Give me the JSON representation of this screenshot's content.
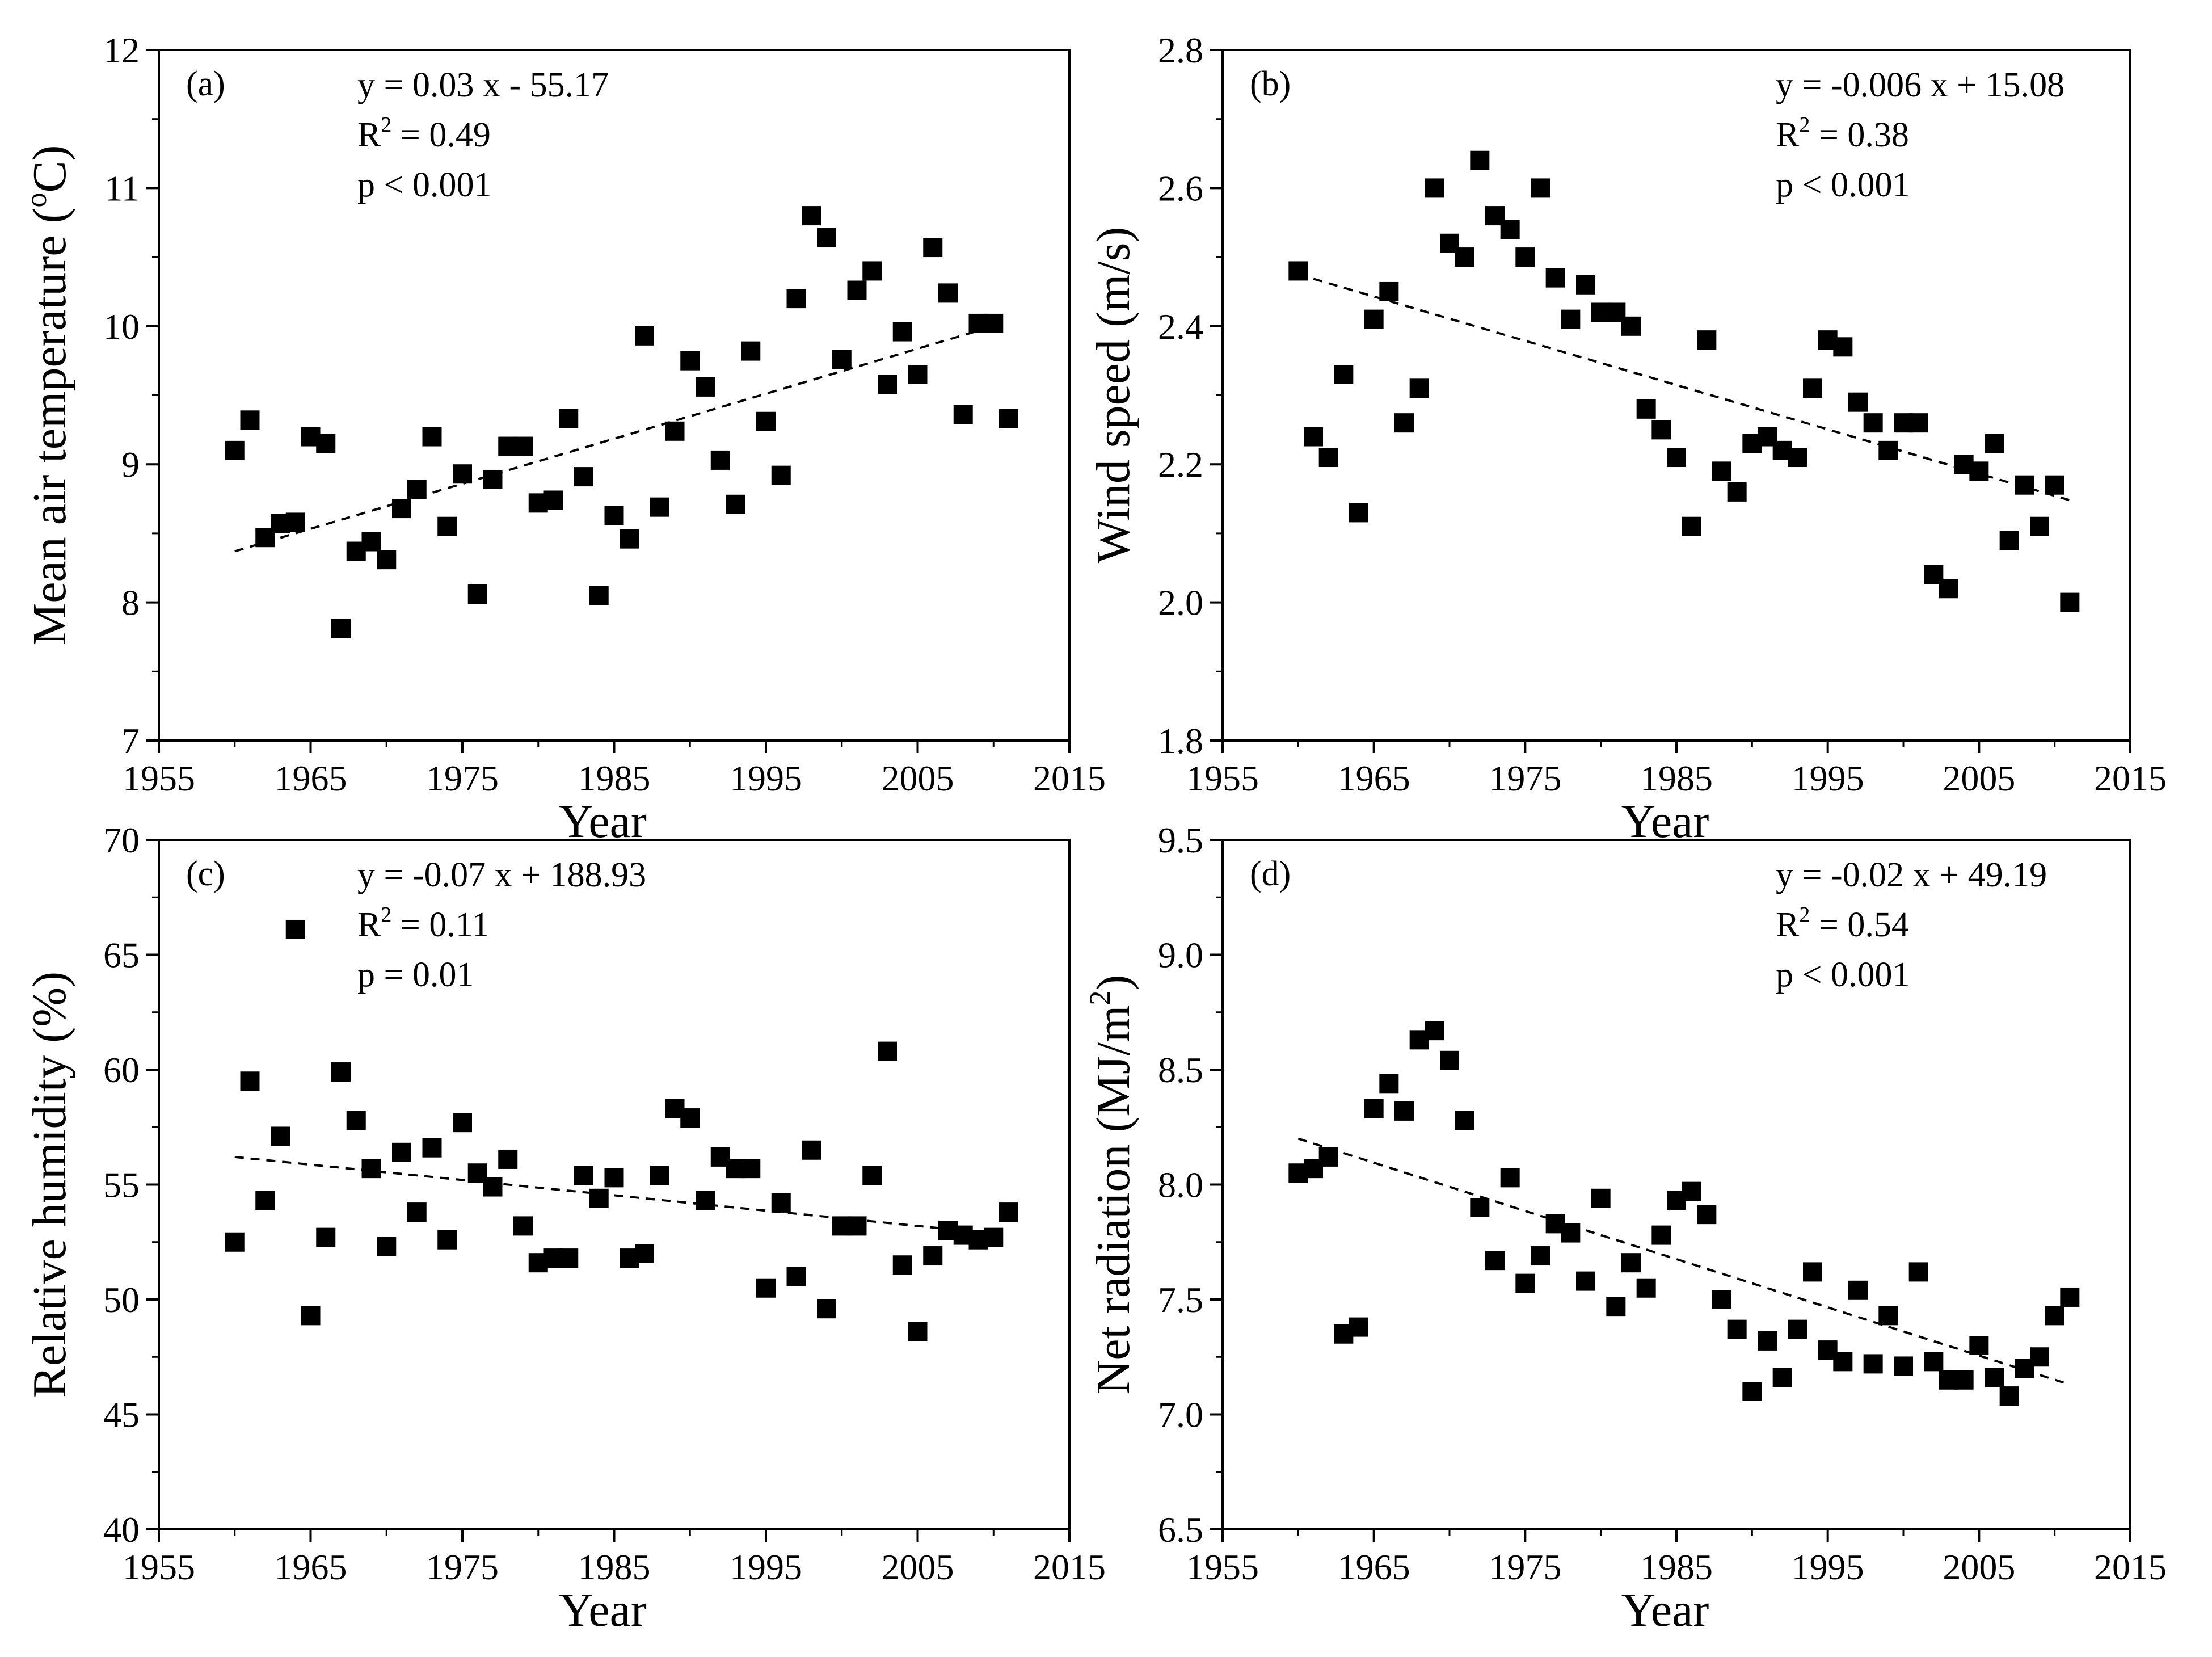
{
  "chart_data": [
    {
      "type": "scatter",
      "panel_label": "(a)",
      "ylabel": "Mean air temperature (°C)",
      "ylabel_parts": {
        "before": "Mean air temperature (",
        "sup": "o",
        "after": "C)"
      },
      "xlabel": "Year",
      "xlim": [
        1955,
        2015
      ],
      "ylim": [
        7,
        12
      ],
      "xticks": [
        1955,
        1965,
        1975,
        1985,
        1995,
        2005,
        2015
      ],
      "yticks": [
        "7",
        "8",
        "9",
        "10",
        "11",
        "12"
      ],
      "equation": "y = 0.03 x - 55.17",
      "r2_value": " = 0.49",
      "p_text": "p < 0.001",
      "trend": {
        "x": [
          1960,
          2010
        ],
        "y": [
          8.37,
          10.0
        ]
      },
      "x": [
        1960,
        1961,
        1962,
        1963,
        1964,
        1965,
        1966,
        1967,
        1968,
        1969,
        1970,
        1971,
        1972,
        1973,
        1974,
        1975,
        1976,
        1977,
        1978,
        1979,
        1980,
        1981,
        1982,
        1983,
        1984,
        1985,
        1986,
        1987,
        1988,
        1989,
        1990,
        1991,
        1992,
        1993,
        1994,
        1995,
        1996,
        1997,
        1998,
        1999,
        2000,
        2001,
        2002,
        2003,
        2004,
        2005,
        2006,
        2007,
        2008,
        2009,
        2010,
        2011
      ],
      "y": [
        9.1,
        9.32,
        8.47,
        8.57,
        8.58,
        9.2,
        9.15,
        7.81,
        8.37,
        8.44,
        8.31,
        8.68,
        8.82,
        9.2,
        8.55,
        8.93,
        8.06,
        8.89,
        9.13,
        9.13,
        8.72,
        8.74,
        9.33,
        8.91,
        8.05,
        8.63,
        8.46,
        9.93,
        8.69,
        9.24,
        9.75,
        9.56,
        9.03,
        8.71,
        9.82,
        9.31,
        8.92,
        10.2,
        10.8,
        10.64,
        9.76,
        10.26,
        10.4,
        9.58,
        9.96,
        9.65,
        10.57,
        10.24,
        9.36,
        10.02,
        10.02,
        9.33
      ]
    },
    {
      "type": "scatter",
      "panel_label": "(b)",
      "ylabel": "Wind speed (m/s)",
      "xlabel": "Year",
      "xlim": [
        1955,
        2015
      ],
      "ylim": [
        1.8,
        2.8
      ],
      "xticks": [
        1955,
        1965,
        1975,
        1985,
        1995,
        2005,
        2015
      ],
      "yticks": [
        "1.8",
        "2.0",
        "2.2",
        "2.4",
        "2.6",
        "2.8"
      ],
      "equation": "y = -0.006 x + 15.08",
      "r2_value": " = 0.38",
      "p_text": "p < 0.001",
      "trend": {
        "x": [
          1960,
          2011
        ],
        "y": [
          2.475,
          2.148
        ]
      },
      "x": [
        1960,
        1961,
        1962,
        1963,
        1964,
        1965,
        1966,
        1967,
        1968,
        1969,
        1970,
        1971,
        1972,
        1973,
        1974,
        1975,
        1976,
        1977,
        1978,
        1979,
        1980,
        1981,
        1982,
        1983,
        1984,
        1985,
        1986,
        1987,
        1988,
        1989,
        1990,
        1991,
        1992,
        1993,
        1994,
        1995,
        1996,
        1997,
        1998,
        1999,
        2000,
        2001,
        2002,
        2003,
        2004,
        2005,
        2006,
        2007,
        2008,
        2009,
        2010,
        2011
      ],
      "y": [
        2.48,
        2.24,
        2.21,
        2.33,
        2.13,
        2.41,
        2.45,
        2.26,
        2.31,
        2.6,
        2.52,
        2.5,
        2.64,
        2.56,
        2.54,
        2.5,
        2.6,
        2.47,
        2.41,
        2.46,
        2.42,
        2.42,
        2.4,
        2.28,
        2.25,
        2.21,
        2.11,
        2.38,
        2.19,
        2.16,
        2.23,
        2.24,
        2.22,
        2.21,
        2.31,
        2.38,
        2.37,
        2.29,
        2.26,
        2.22,
        2.26,
        2.26,
        2.04,
        2.02,
        2.2,
        2.19,
        2.23,
        2.09,
        2.17,
        2.11,
        2.17,
        2.0
      ]
    },
    {
      "type": "scatter",
      "panel_label": "(c)",
      "ylabel": "Relative humidity (%)",
      "xlabel": "Year",
      "xlim": [
        1955,
        2015
      ],
      "ylim": [
        40,
        70
      ],
      "xticks": [
        1955,
        1965,
        1975,
        1985,
        1995,
        2005,
        2015
      ],
      "yticks": [
        "40",
        "45",
        "50",
        "55",
        "60",
        "65",
        "70"
      ],
      "equation": "y = -0.07 x + 188.93",
      "r2_value": " = 0.11",
      "p_text": "p = 0.01",
      "trend": {
        "x": [
          1960,
          2011
        ],
        "y": [
          56.2,
          52.8
        ]
      },
      "x": [
        1960,
        1961,
        1962,
        1963,
        1964,
        1965,
        1966,
        1967,
        1968,
        1969,
        1970,
        1971,
        1972,
        1973,
        1974,
        1975,
        1976,
        1977,
        1978,
        1979,
        1980,
        1981,
        1982,
        1983,
        1984,
        1985,
        1986,
        1987,
        1988,
        1989,
        1990,
        1991,
        1992,
        1993,
        1994,
        1995,
        1996,
        1997,
        1998,
        1999,
        2000,
        2001,
        2002,
        2003,
        2004,
        2005,
        2006,
        2007,
        2008,
        2009,
        2010,
        2011
      ],
      "y": [
        52.5,
        59.5,
        54.3,
        57.1,
        66.1,
        49.3,
        52.7,
        59.9,
        57.8,
        55.7,
        52.3,
        56.4,
        53.8,
        56.6,
        52.6,
        57.7,
        55.5,
        54.9,
        56.1,
        53.2,
        51.6,
        51.8,
        51.8,
        55.4,
        54.4,
        55.3,
        51.8,
        52.0,
        55.4,
        58.3,
        57.9,
        54.3,
        56.2,
        55.7,
        55.7,
        50.5,
        54.2,
        51.0,
        56.5,
        49.6,
        53.2,
        53.2,
        55.4,
        60.8,
        51.5,
        48.6,
        51.9,
        53.0,
        52.8,
        52.6,
        52.7,
        53.8
      ]
    },
    {
      "type": "scatter",
      "panel_label": "(d)",
      "ylabel": "Net radiation (MJ/m²)",
      "ylabel_parts": {
        "before": "Net radiation (MJ/m",
        "sup": "2",
        "after": ")"
      },
      "xlabel": "Year",
      "xlim": [
        1955,
        2015
      ],
      "ylim": [
        6.5,
        9.5
      ],
      "xticks": [
        1955,
        1965,
        1975,
        1985,
        1995,
        2005,
        2015
      ],
      "yticks": [
        "6.5",
        "7.0",
        "7.5",
        "8.0",
        "8.5",
        "9.0",
        "9.5"
      ],
      "equation": "y = -0.02 x + 49.19",
      "r2_value": " = 0.54",
      "p_text": "p < 0.001",
      "trend": {
        "x": [
          1960,
          2011
        ],
        "y": [
          8.2,
          7.13
        ]
      },
      "x": [
        1960,
        1961,
        1962,
        1963,
        1964,
        1965,
        1966,
        1967,
        1968,
        1969,
        1970,
        1971,
        1972,
        1973,
        1974,
        1975,
        1976,
        1977,
        1978,
        1979,
        1980,
        1981,
        1982,
        1983,
        1984,
        1985,
        1986,
        1987,
        1988,
        1989,
        1990,
        1991,
        1992,
        1993,
        1994,
        1995,
        1996,
        1997,
        1998,
        1999,
        2000,
        2001,
        2002,
        2003,
        2004,
        2005,
        2006,
        2007,
        2008,
        2009,
        2010,
        2011
      ],
      "y": [
        8.05,
        8.07,
        8.12,
        7.35,
        7.38,
        8.33,
        8.44,
        8.32,
        8.63,
        8.67,
        8.54,
        8.28,
        7.9,
        7.67,
        8.03,
        7.57,
        7.69,
        7.83,
        7.79,
        7.58,
        7.94,
        7.47,
        7.66,
        7.55,
        7.78,
        7.93,
        7.97,
        7.87,
        7.5,
        7.37,
        7.1,
        7.32,
        7.16,
        7.37,
        7.62,
        7.28,
        7.23,
        7.54,
        7.22,
        7.43,
        7.21,
        7.62,
        7.23,
        7.15,
        7.15,
        7.3,
        7.16,
        7.08,
        7.2,
        7.25,
        7.43,
        7.51
      ]
    }
  ]
}
